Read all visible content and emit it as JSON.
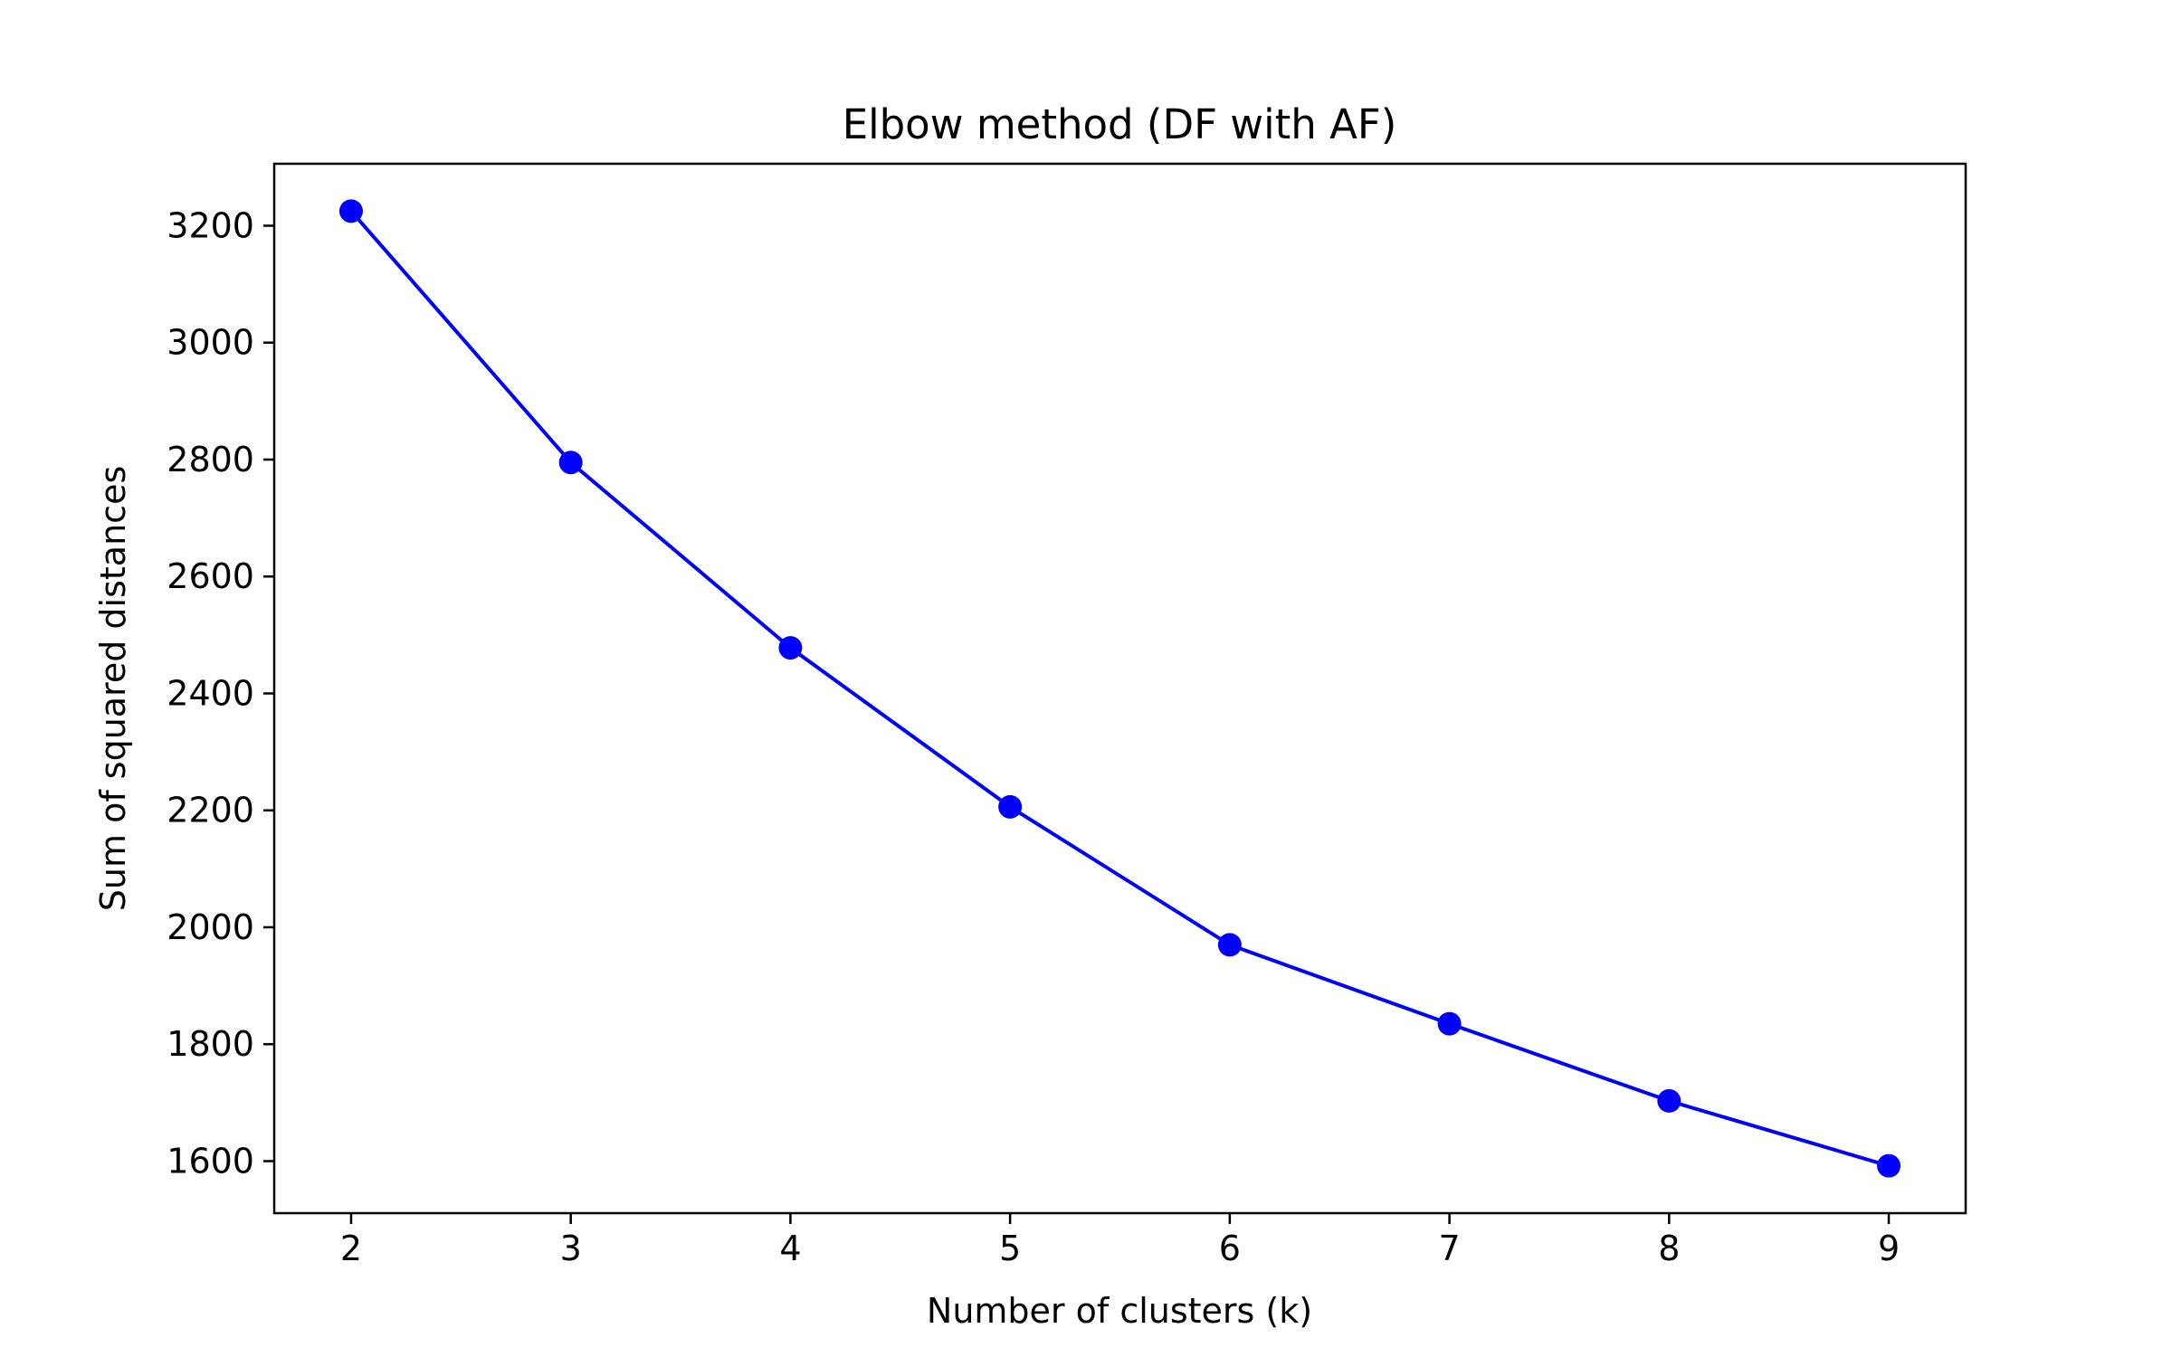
{
  "chart_data": {
    "type": "line",
    "title": "Elbow method (DF with AF)",
    "xlabel": "Number of clusters (k)",
    "ylabel": "Sum of squared distances",
    "x": [
      2,
      3,
      4,
      5,
      6,
      7,
      8,
      9
    ],
    "series": [
      {
        "values": [
          3225,
          2795,
          2478,
          2206,
          1970,
          1835,
          1703,
          1592
        ],
        "color": "#0000ff",
        "marker": "circle"
      }
    ],
    "xticks": [
      "2",
      "3",
      "4",
      "5",
      "6",
      "7",
      "8",
      "9"
    ],
    "yticks": [
      "1600",
      "1800",
      "2000",
      "2200",
      "2400",
      "2600",
      "2800",
      "3000",
      "3200"
    ],
    "xlim": [
      1.65,
      9.35
    ],
    "ylim": [
      1511,
      3306
    ],
    "grid": false,
    "legend": "none"
  }
}
